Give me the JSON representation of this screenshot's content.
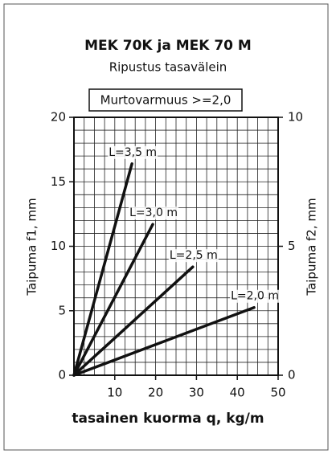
{
  "chart_data": {
    "type": "line",
    "title": "MEK 70K ja MEK 70 M",
    "subtitle": "Ripustus tasavälein",
    "annotation": "Murtovarmuus >=2,0",
    "xlabel": "tasainen kuorma q, kg/m",
    "ylabel": "Taipuma  f1, mm",
    "y2label": "Taipuma  f2, mm",
    "xlim": [
      0,
      50
    ],
    "xticks": [
      10,
      20,
      30,
      40,
      50
    ],
    "ylim": [
      0,
      20
    ],
    "yticks": [
      0,
      5,
      10,
      15,
      20
    ],
    "y2lim": [
      0,
      10
    ],
    "y2ticks": [
      0,
      5,
      10
    ],
    "grid": {
      "x_step": 2.5,
      "y_step": 1
    },
    "series": [
      {
        "name": "L=3,5 m",
        "color": "#111111",
        "x": [
          0,
          14.2
        ],
        "values": [
          0,
          16.4
        ]
      },
      {
        "name": "L=3,0 m",
        "color": "#111111",
        "x": [
          0,
          19.3
        ],
        "values": [
          0,
          11.7
        ]
      },
      {
        "name": "L=2,5 m",
        "color": "#111111",
        "x": [
          0,
          29.1
        ],
        "values": [
          0,
          8.4
        ]
      },
      {
        "name": "L=2,0 m",
        "color": "#111111",
        "x": [
          0,
          44.1
        ],
        "values": [
          0,
          5.25
        ]
      }
    ]
  }
}
